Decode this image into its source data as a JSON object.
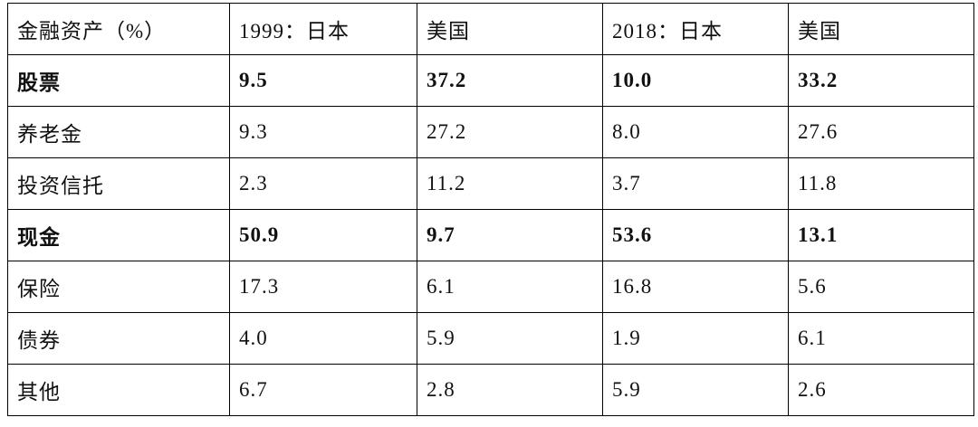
{
  "table": {
    "header": [
      "金融资产（%）",
      "1999：日本",
      "美国",
      "2018：日本",
      "美国"
    ],
    "rows": [
      {
        "bold": true,
        "cells": [
          "股票",
          "9.5",
          "37.2",
          "10.0",
          "33.2"
        ]
      },
      {
        "bold": false,
        "cells": [
          "养老金",
          "9.3",
          "27.2",
          "8.0",
          "27.6"
        ]
      },
      {
        "bold": false,
        "cells": [
          "投资信托",
          "2.3",
          "11.2",
          "3.7",
          "11.8"
        ]
      },
      {
        "bold": true,
        "cells": [
          "现金",
          "50.9",
          "9.7",
          "53.6",
          "13.1"
        ]
      },
      {
        "bold": false,
        "cells": [
          "保险",
          "17.3",
          "6.1",
          "16.8",
          "5.6"
        ]
      },
      {
        "bold": false,
        "cells": [
          "债券",
          "4.0",
          "5.9",
          "1.9",
          "6.1"
        ]
      },
      {
        "bold": false,
        "cells": [
          "其他",
          "6.7",
          "2.8",
          "5.9",
          "2.6"
        ]
      }
    ]
  }
}
